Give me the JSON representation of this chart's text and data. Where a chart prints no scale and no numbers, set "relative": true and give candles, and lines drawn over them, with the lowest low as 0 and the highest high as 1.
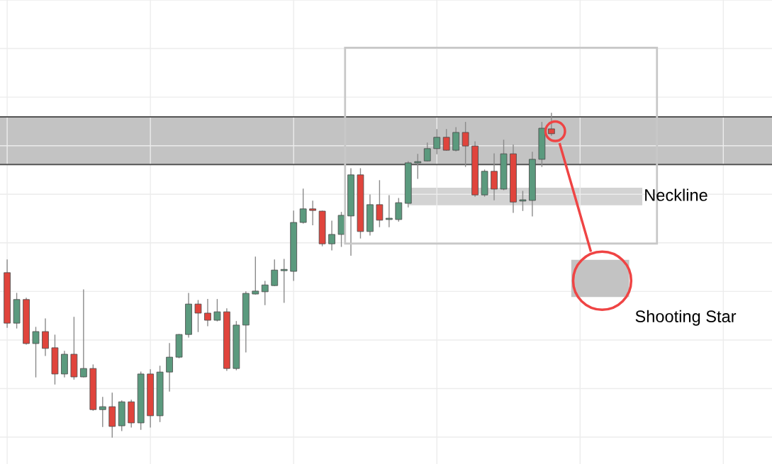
{
  "chart_data": {
    "type": "candlestick",
    "relative": true,
    "grid": true,
    "categories": [
      null,
      null,
      null,
      null,
      null,
      null,
      null,
      null,
      null,
      null,
      null,
      null,
      null,
      null,
      null,
      null,
      null,
      null,
      null,
      null,
      null,
      null,
      null,
      null,
      null,
      null,
      null,
      null,
      null,
      null,
      null,
      null,
      null,
      null,
      null,
      null,
      null,
      null,
      null,
      null,
      null,
      null,
      null,
      null,
      null,
      null,
      null,
      null,
      null,
      null,
      null,
      null,
      null,
      null,
      null,
      null,
      null,
      null,
      null,
      null,
      null,
      null,
      null,
      null,
      null,
      null,
      null,
      null,
      null,
      null,
      null,
      null,
      null,
      null,
      null,
      null,
      null,
      null,
      null,
      null,
      null
    ],
    "ohlc": [
      [
        0.508,
        0.547,
        0.339,
        0.352
      ],
      [
        0.352,
        0.444,
        0.337,
        0.425
      ],
      [
        0.425,
        0.429,
        0.287,
        0.289
      ],
      [
        0.289,
        0.339,
        0.186,
        0.326
      ],
      [
        0.326,
        0.365,
        0.252,
        0.274
      ],
      [
        0.276,
        0.315,
        0.164,
        0.195
      ],
      [
        0.195,
        0.265,
        0.186,
        0.256
      ],
      [
        0.256,
        0.37,
        0.179,
        0.186
      ],
      [
        0.186,
        0.455,
        0.186,
        0.212
      ],
      [
        0.212,
        0.223,
        0.083,
        0.085
      ],
      [
        0.085,
        0.123,
        0.033,
        0.094
      ],
      [
        0.094,
        0.136,
        0.0,
        0.033
      ],
      [
        0.035,
        0.112,
        0.02,
        0.109
      ],
      [
        0.109,
        0.114,
        0.031,
        0.044
      ],
      [
        0.044,
        0.201,
        0.024,
        0.195
      ],
      [
        0.195,
        0.208,
        0.031,
        0.066
      ],
      [
        0.066,
        0.219,
        0.048,
        0.201
      ],
      [
        0.201,
        0.289,
        0.142,
        0.247
      ],
      [
        0.247,
        0.317,
        0.245,
        0.317
      ],
      [
        0.317,
        0.444,
        0.309,
        0.411
      ],
      [
        0.411,
        0.422,
        0.326,
        0.383
      ],
      [
        0.383,
        0.425,
        0.344,
        0.361
      ],
      [
        0.361,
        0.425,
        0.359,
        0.387
      ],
      [
        0.387,
        0.396,
        0.206,
        0.212
      ],
      [
        0.212,
        0.357,
        0.208,
        0.346
      ],
      [
        0.346,
        0.449,
        0.263,
        0.444
      ],
      [
        0.442,
        0.556,
        0.442,
        0.451
      ],
      [
        0.449,
        0.481,
        0.409,
        0.47
      ],
      [
        0.468,
        0.547,
        0.468,
        0.516
      ],
      [
        0.514,
        0.549,
        0.416,
        0.516
      ],
      [
        0.512,
        0.698,
        0.484,
        0.663
      ],
      [
        0.663,
        0.766,
        0.661,
        0.705
      ],
      [
        0.705,
        0.729,
        0.656,
        0.7
      ],
      [
        0.698,
        0.698,
        0.591,
        0.597
      ],
      [
        0.597,
        0.667,
        0.578,
        0.626
      ],
      [
        0.626,
        0.694,
        0.589,
        0.685
      ],
      [
        0.683,
        0.829,
        0.562,
        0.81
      ],
      [
        0.81,
        0.829,
        0.615,
        0.635
      ],
      [
        0.635,
        0.748,
        0.624,
        0.718
      ],
      [
        0.718,
        0.792,
        0.65,
        0.67
      ],
      [
        0.672,
        0.746,
        0.65,
        0.674
      ],
      [
        0.672,
        0.737,
        0.667,
        0.724
      ],
      [
        0.722,
        0.851,
        0.711,
        0.847
      ],
      [
        0.847,
        0.873,
        0.799,
        0.851
      ],
      [
        0.853,
        0.908,
        0.853,
        0.891
      ],
      [
        0.891,
        0.95,
        0.875,
        0.926
      ],
      [
        0.926,
        0.95,
        0.886,
        0.886
      ],
      [
        0.886,
        0.956,
        0.884,
        0.941
      ],
      [
        0.941,
        0.972,
        0.836,
        0.899
      ],
      [
        0.899,
        0.912,
        0.744,
        0.748
      ],
      [
        0.748,
        0.825,
        0.744,
        0.821
      ],
      [
        0.821,
        0.875,
        0.733,
        0.766
      ],
      [
        0.766,
        0.917,
        0.764,
        0.875
      ],
      [
        0.875,
        0.902,
        0.694,
        0.726
      ],
      [
        0.729,
        0.759,
        0.7,
        0.731
      ],
      [
        0.731,
        0.88,
        0.683,
        0.858
      ],
      [
        0.858,
        0.972,
        0.836,
        0.954
      ],
      [
        0.952,
        1.0,
        0.932,
        0.937
      ],
      null,
      null,
      null,
      null,
      null,
      null,
      null,
      null,
      null,
      null,
      null,
      null,
      null,
      null,
      null,
      null,
      null,
      null,
      null,
      null,
      null,
      null,
      null
    ],
    "colors": [
      "#e0443c",
      "#5b9a7e",
      "#e0443c",
      "#5b9a7e",
      "#e0443c",
      "#e0443c",
      "#5b9a7e",
      "#e0443c",
      "#5b9a7e",
      "#e0443c",
      "#5b9a7e",
      "#e0443c",
      "#5b9a7e",
      "#e0443c",
      "#5b9a7e",
      "#e0443c",
      "#5b9a7e",
      "#5b9a7e",
      "#5b9a7e",
      "#5b9a7e",
      "#e0443c",
      "#e0443c",
      "#5b9a7e",
      "#e0443c",
      "#5b9a7e",
      "#5b9a7e",
      "#5b9a7e",
      "#5b9a7e",
      "#5b9a7e",
      "#5b9a7e",
      "#5b9a7e",
      "#5b9a7e",
      "#e0443c",
      "#e0443c",
      "#5b9a7e",
      "#5b9a7e",
      "#5b9a7e",
      "#e0443c",
      "#5b9a7e",
      "#e0443c",
      "#5b9a7e",
      "#5b9a7e",
      "#5b9a7e",
      "#5b9a7e",
      "#5b9a7e",
      "#5b9a7e",
      "#e0443c",
      "#5b9a7e",
      "#e0443c",
      "#e0443c",
      "#5b9a7e",
      "#e0443c",
      "#5b9a7e",
      "#e0443c",
      "#5b9a7e",
      "#5b9a7e",
      "#5b9a7e",
      "#e0443c",
      null,
      null,
      null,
      null,
      null,
      null,
      null,
      null,
      null,
      null,
      null,
      null,
      null,
      null,
      null,
      null,
      null,
      null,
      null,
      null,
      null,
      null,
      null
    ],
    "bands": [
      {
        "axis": "y",
        "from": 0.842,
        "to": 0.989,
        "color": "#c3c3c3"
      },
      {
        "axis": "y",
        "from": 0.716,
        "to": 0.77,
        "label": "Neckline",
        "color": "#d3d3d3"
      }
    ],
    "ref_lines": [
      {
        "axis": "y",
        "value": 0.989,
        "color": "#555555"
      },
      {
        "axis": "y",
        "value": 0.842,
        "color": "#555555"
      }
    ],
    "annotations": [
      "Shooting Star"
    ]
  }
}
